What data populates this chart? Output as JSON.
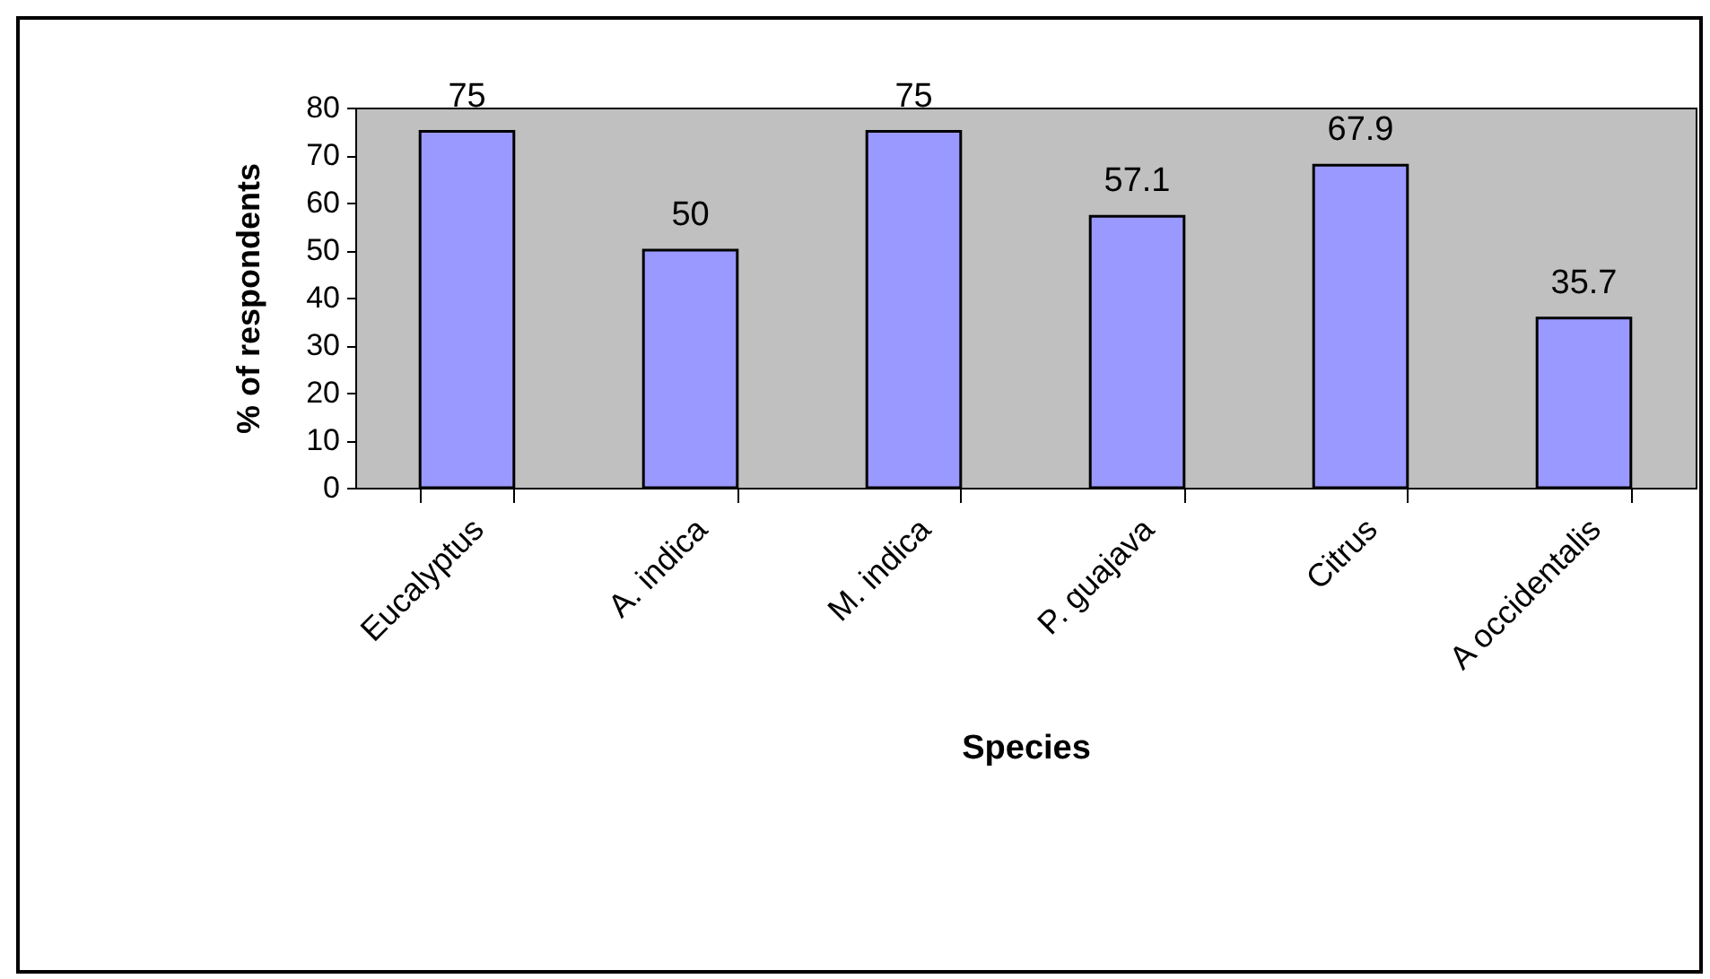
{
  "chart_data": {
    "type": "bar",
    "xlabel": "Species",
    "ylabel": "% of respondents",
    "categories": [
      "Eucalyptus",
      "A. indica",
      "M. indica",
      "P. guajava",
      "Citrus",
      "A occidentalis"
    ],
    "values": [
      75,
      50,
      75,
      57.1,
      67.9,
      35.7
    ],
    "color": "#9999ff",
    "ylim": [
      0,
      80
    ],
    "yticks": [
      0,
      10,
      20,
      30,
      40,
      50,
      60,
      70,
      80
    ],
    "data_labels": true
  }
}
